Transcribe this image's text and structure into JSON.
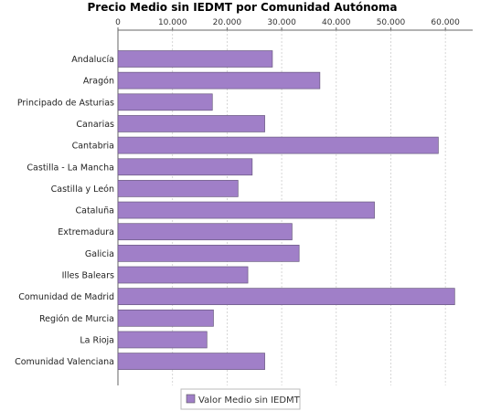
{
  "chart_data": {
    "type": "bar",
    "orientation": "horizontal",
    "title": "Precio Medio sin IEDMT por Comunidad Autónoma",
    "xlabel": "",
    "ylabel": "",
    "xaxis_position": "top",
    "xlim": [
      0,
      65000
    ],
    "xticks": [
      0,
      10000,
      20000,
      30000,
      40000,
      50000,
      60000
    ],
    "xtick_labels": [
      "0",
      "10.000",
      "20.000",
      "30.000",
      "40.000",
      "50.000",
      "60.000"
    ],
    "grid": "vertical dashed",
    "categories": [
      "Andalucía",
      "Aragón",
      "Principado de Asturias",
      "Canarias",
      "Cantabria",
      "Castilla - La Mancha",
      "Castilla y León",
      "Cataluña",
      "Extremadura",
      "Galicia",
      "Illes Balears",
      "Comunidad de Madrid",
      "Región de Murcia",
      "La Rioja",
      "Comunidad Valenciana"
    ],
    "series": [
      {
        "name": "Valor Medio sin IEDMT",
        "color": "#a07fc8",
        "values": [
          28300,
          37000,
          17300,
          26900,
          58700,
          24600,
          22000,
          47000,
          31900,
          33200,
          23800,
          61700,
          17500,
          16300,
          26900
        ]
      }
    ],
    "legend_position": "bottom-center"
  }
}
